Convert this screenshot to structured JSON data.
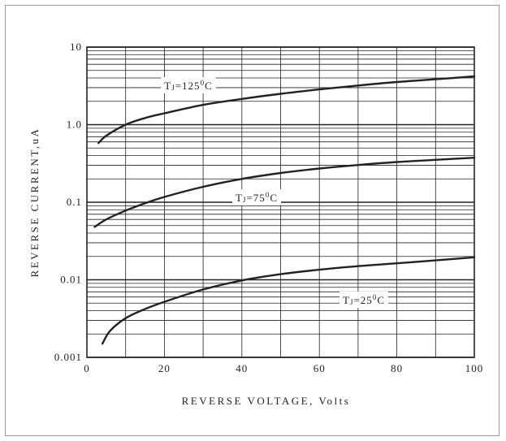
{
  "chart_data": {
    "type": "line",
    "title": "",
    "xlabel": "REVERSE VOLTAGE, Volts",
    "ylabel": "REVERSE CURRENT,uA",
    "xscale": "linear",
    "yscale": "log",
    "xlim": [
      0,
      100
    ],
    "ylim": [
      0.001,
      10
    ],
    "x_ticks": [
      0,
      20,
      40,
      60,
      80,
      100
    ],
    "x_tick_labels": [
      "0",
      "20",
      "40",
      "60",
      "80",
      "100"
    ],
    "y_ticks": [
      0.001,
      0.01,
      0.1,
      1,
      10
    ],
    "y_tick_labels": [
      "0.001",
      "0.01",
      "0.1",
      "1.0",
      "10"
    ],
    "grid": true,
    "minor_grid": true,
    "legend": "none",
    "line_color": "#222222",
    "grid_color": "#222222",
    "series": [
      {
        "name": "TJ=125°C",
        "x": [
          3,
          5,
          10,
          15,
          20,
          30,
          40,
          50,
          60,
          70,
          80,
          90,
          100
        ],
        "y": [
          0.58,
          0.72,
          1.0,
          1.22,
          1.4,
          1.8,
          2.15,
          2.5,
          2.85,
          3.2,
          3.55,
          3.85,
          4.2
        ]
      },
      {
        "name": "TJ=75°C",
        "x": [
          2,
          5,
          10,
          15,
          20,
          30,
          40,
          50,
          60,
          70,
          80,
          90,
          100
        ],
        "y": [
          0.048,
          0.06,
          0.078,
          0.097,
          0.117,
          0.158,
          0.2,
          0.238,
          0.272,
          0.302,
          0.33,
          0.352,
          0.375
        ]
      },
      {
        "name": "TJ=25°C",
        "x": [
          4,
          6,
          10,
          15,
          20,
          30,
          40,
          50,
          60,
          70,
          80,
          90,
          100
        ],
        "y": [
          0.0015,
          0.0022,
          0.0032,
          0.0042,
          0.0052,
          0.0075,
          0.0098,
          0.0118,
          0.0135,
          0.015,
          0.0163,
          0.0178,
          0.0195
        ]
      }
    ],
    "annotations": [
      {
        "series": "TJ=125°C",
        "text": "TJ=125°C",
        "main": "T",
        "sub": "J",
        "rest": "=125",
        "deg": "0",
        "unit": "C"
      },
      {
        "series": "TJ=75°C",
        "text": "TJ=75°C",
        "main": "T",
        "sub": "J",
        "rest": "=75",
        "deg": "0",
        "unit": "C"
      },
      {
        "series": "TJ=25°C",
        "text": "TJ=25°C",
        "main": "T",
        "sub": "J",
        "rest": "=25",
        "deg": "0",
        "unit": "C"
      }
    ]
  }
}
